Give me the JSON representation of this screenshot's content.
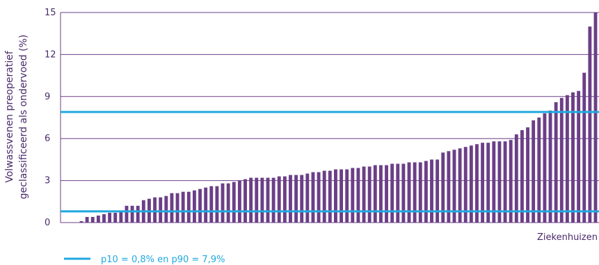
{
  "chart_data": {
    "type": "bar",
    "title": "",
    "ylabel_lines": [
      "Volwassvenen preoperatief",
      "geclassificeerd als ondervoed (%)"
    ],
    "xlabel": "Ziekenhuizen",
    "ylim": [
      0,
      15
    ],
    "yticks": [
      0,
      3,
      6,
      9,
      12,
      15
    ],
    "grid": true,
    "values": [
      0.1,
      0.4,
      0.4,
      0.5,
      0.6,
      0.7,
      0.7,
      0.8,
      1.2,
      1.2,
      1.2,
      1.6,
      1.7,
      1.8,
      1.8,
      1.9,
      2.1,
      2.1,
      2.2,
      2.2,
      2.3,
      2.4,
      2.5,
      2.6,
      2.6,
      2.8,
      2.8,
      2.9,
      3.0,
      3.1,
      3.2,
      3.2,
      3.2,
      3.2,
      3.2,
      3.3,
      3.3,
      3.4,
      3.4,
      3.4,
      3.5,
      3.6,
      3.6,
      3.7,
      3.7,
      3.8,
      3.8,
      3.8,
      3.9,
      3.9,
      4.0,
      4.0,
      4.1,
      4.1,
      4.1,
      4.2,
      4.2,
      4.2,
      4.3,
      4.3,
      4.3,
      4.4,
      4.5,
      4.5,
      5.0,
      5.1,
      5.2,
      5.3,
      5.4,
      5.5,
      5.6,
      5.7,
      5.7,
      5.8,
      5.8,
      5.8,
      5.9,
      6.3,
      6.6,
      6.8,
      7.3,
      7.5,
      7.8,
      8.0,
      8.6,
      8.9,
      9.1,
      9.3,
      9.4,
      10.7,
      14.0,
      15.0
    ],
    "reference_lines": [
      {
        "label": "p10",
        "value": 0.8
      },
      {
        "label": "p90",
        "value": 7.9
      }
    ],
    "legend": {
      "text": "p10 = 0,8% en p90 = 7,9%",
      "placement": "bottom-left"
    }
  },
  "colors": {
    "bar": "#6b3f87",
    "reference_line": "#1fa9df",
    "grid": "#6b3f87",
    "axis": "#6b3f87",
    "text": "#4a2a6a"
  }
}
